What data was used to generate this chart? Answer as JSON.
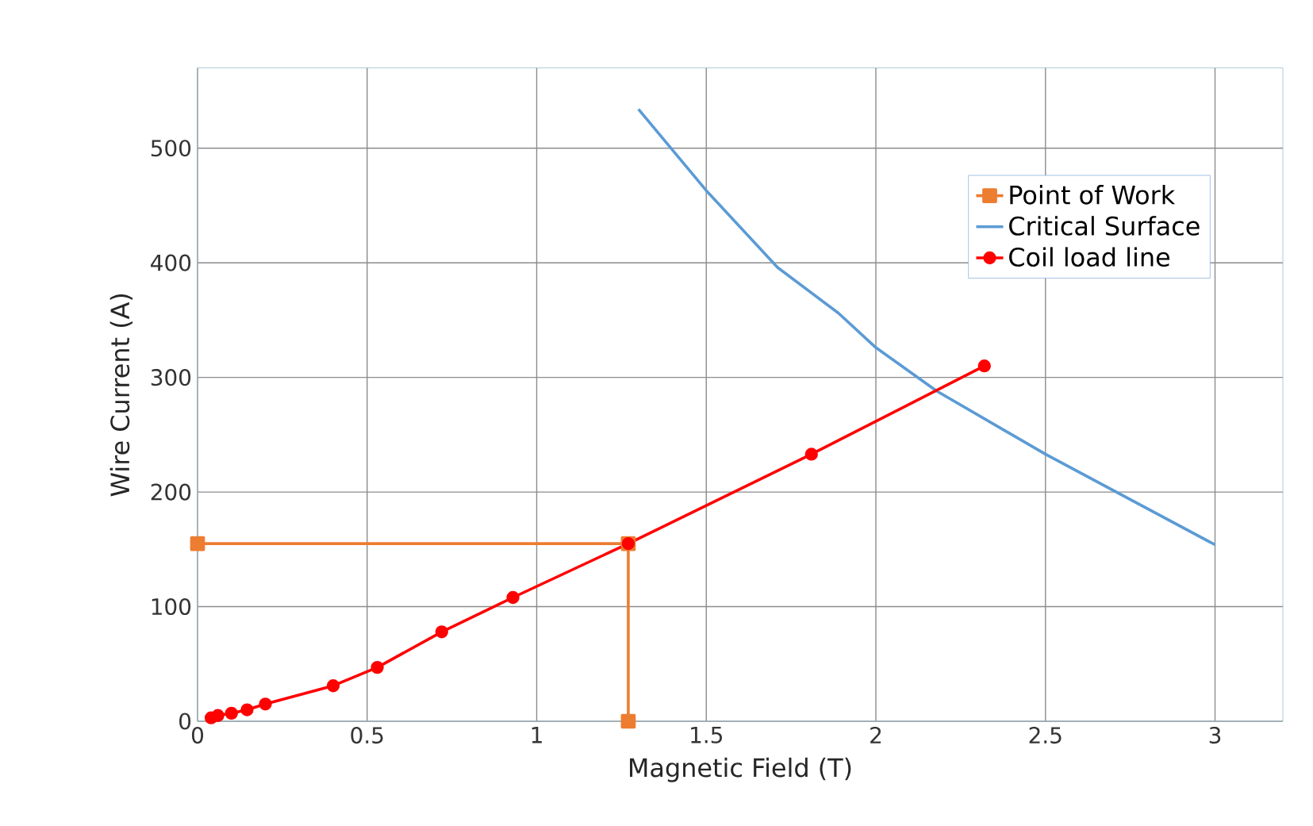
{
  "chart_data": {
    "type": "line",
    "xlabel": "Magnetic Field (T)",
    "ylabel": "Wire Current (A)",
    "xlim": [
      0,
      3.2
    ],
    "ylim": [
      0,
      570
    ],
    "xticks": [
      0,
      0.5,
      1,
      1.5,
      2,
      2.5,
      3
    ],
    "yticks": [
      0,
      100,
      200,
      300,
      400,
      500
    ],
    "grid": true,
    "legend": "top right",
    "line_style": "solid",
    "series": [
      {
        "name": "Point of Work",
        "color": "#ed7d31",
        "marker": "square",
        "x": [
          0,
          1.27,
          1.27
        ],
        "values": [
          155,
          155,
          0
        ]
      },
      {
        "name": "Critical Surface",
        "color": "#5b9bd5",
        "marker": "none",
        "x": [
          1.3,
          1.5,
          1.71,
          1.89,
          2.0,
          2.18,
          2.5,
          3.0
        ],
        "values": [
          534,
          463,
          396,
          356,
          326,
          288,
          233,
          154
        ]
      },
      {
        "name": "Coil load line",
        "color": "#ff0000",
        "marker": "circle",
        "x": [
          0.04,
          0.06,
          0.1,
          0.146,
          0.2,
          0.4,
          0.53,
          0.72,
          0.93,
          1.27,
          1.81,
          2.32
        ],
        "values": [
          3,
          5,
          7,
          10,
          15,
          31,
          47,
          78,
          108,
          155,
          233,
          310
        ]
      }
    ]
  }
}
